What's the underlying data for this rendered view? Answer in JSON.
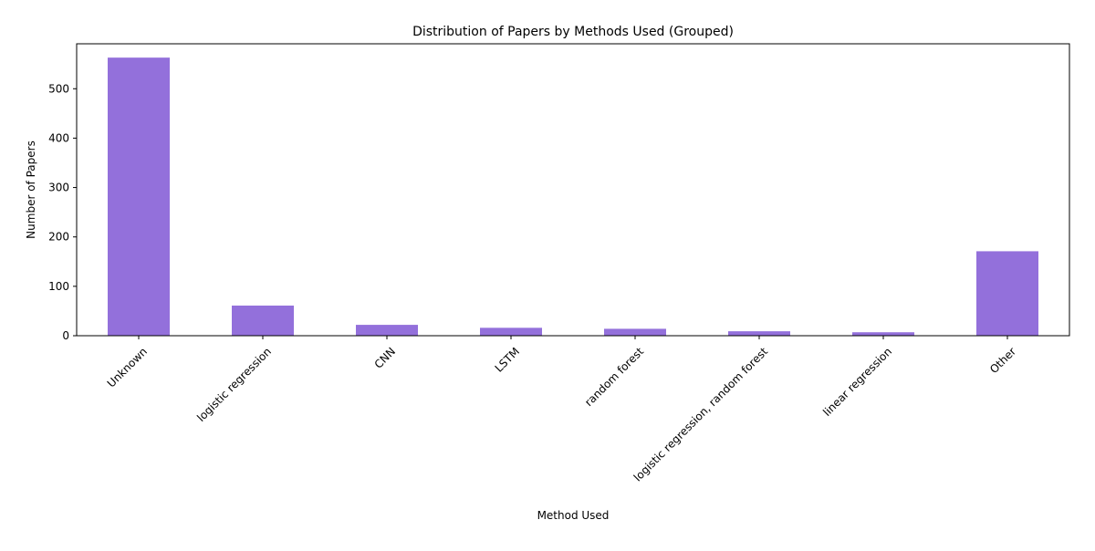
{
  "chart_data": {
    "type": "bar",
    "title": "Distribution of Papers by Methods Used (Grouped)",
    "xlabel": "Method Used",
    "ylabel": "Number of Papers",
    "categories": [
      "Unknown",
      "logistic regression",
      "CNN",
      "LSTM",
      "random forest",
      "logistic regression, random forest",
      "linear regression",
      "Other"
    ],
    "values": [
      563,
      61,
      22,
      16,
      14,
      9,
      7,
      171
    ],
    "ylim": [
      0,
      591
    ],
    "yticks": [
      0,
      100,
      200,
      300,
      400,
      500
    ],
    "grid": false,
    "legend": "none",
    "bar_color": "#9370DB"
  }
}
